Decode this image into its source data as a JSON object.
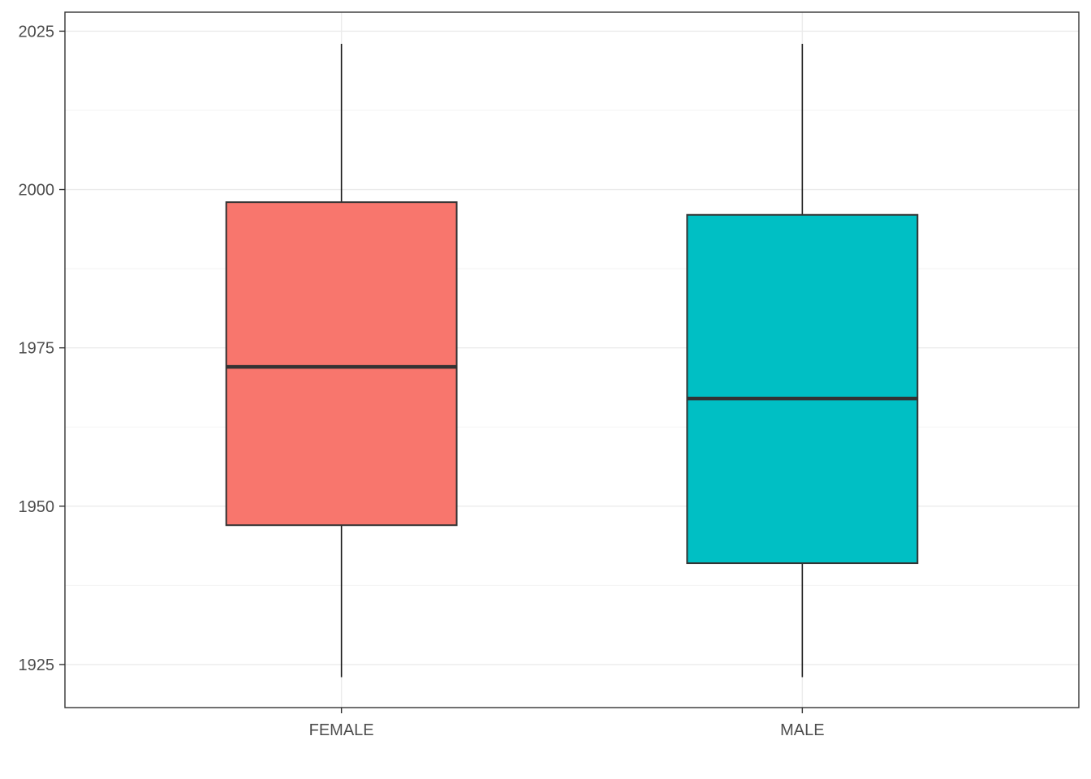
{
  "chart_data": {
    "type": "boxplot",
    "title": "",
    "xlabel": "",
    "ylabel": "",
    "categories": [
      "FEMALE",
      "MALE"
    ],
    "ylim": [
      1918.2,
      2028.0
    ],
    "y_ticks": [
      1925,
      1950,
      1975,
      2000,
      2025
    ],
    "y_minor_ticks": [
      1937.5,
      1962.5,
      1987.5,
      2012.5
    ],
    "grid": true,
    "legend": "none",
    "boxes": [
      {
        "name": "FEMALE",
        "min": 1923,
        "q1": 1947,
        "median": 1972,
        "q3": 1998,
        "max": 2023,
        "color": "#F8766D"
      },
      {
        "name": "MALE",
        "min": 1923,
        "q1": 1941,
        "median": 1967,
        "q3": 1996,
        "max": 2023,
        "color": "#00BFC4"
      }
    ]
  }
}
